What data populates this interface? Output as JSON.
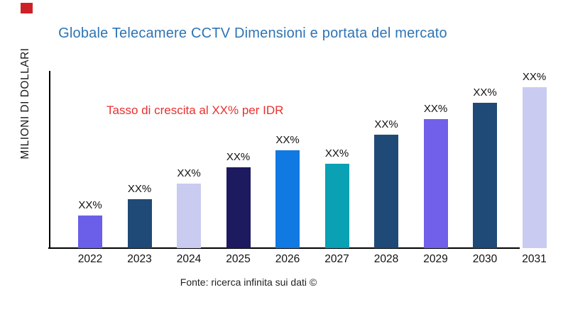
{
  "page": {
    "background": "#ffffff"
  },
  "decoration": {
    "red_square_color": "#ce2127"
  },
  "title": {
    "text": "Globale Telecamere CCTV Dimensioni e portata del mercato",
    "color": "#2e74b5"
  },
  "annotation": {
    "text": "Tasso di crescita al XX% per IDR",
    "color": "#e9302e"
  },
  "y_axis": {
    "label": "MILIONI DI DOLLARI"
  },
  "footer": {
    "text": "Fonte: ricerca infinita sui dati ©"
  },
  "chart_data": {
    "type": "bar",
    "title": "Globale Telecamere CCTV Dimensioni e portata del mercato",
    "xlabel": "",
    "ylabel": "MILIONI DI DOLLARI",
    "categories": [
      "2022",
      "2023",
      "2024",
      "2025",
      "2026",
      "2027",
      "2028",
      "2029",
      "2030",
      "2031"
    ],
    "values": [
      46,
      69,
      91,
      114,
      138,
      119,
      160,
      182,
      205,
      227
    ],
    "value_labels": [
      "XX%",
      "XX%",
      "XX%",
      "XX%",
      "XX%",
      "XX%",
      "XX%",
      "XX%",
      "XX%",
      "XX%"
    ],
    "bar_colors": [
      "#6b5ee9",
      "#1f4a77",
      "#cacbf0",
      "#1e1a60",
      "#1179e2",
      "#09a1b3",
      "#1f4a77",
      "#7160ea",
      "#1f4a77",
      "#cacbf0"
    ],
    "ylim": [
      0,
      250
    ],
    "grid": false,
    "legend": false,
    "annotation": "Tasso di crescita al XX% per IDR",
    "source": "Fonte: ricerca infinita sui dati ©",
    "axis_color": "#000000"
  }
}
